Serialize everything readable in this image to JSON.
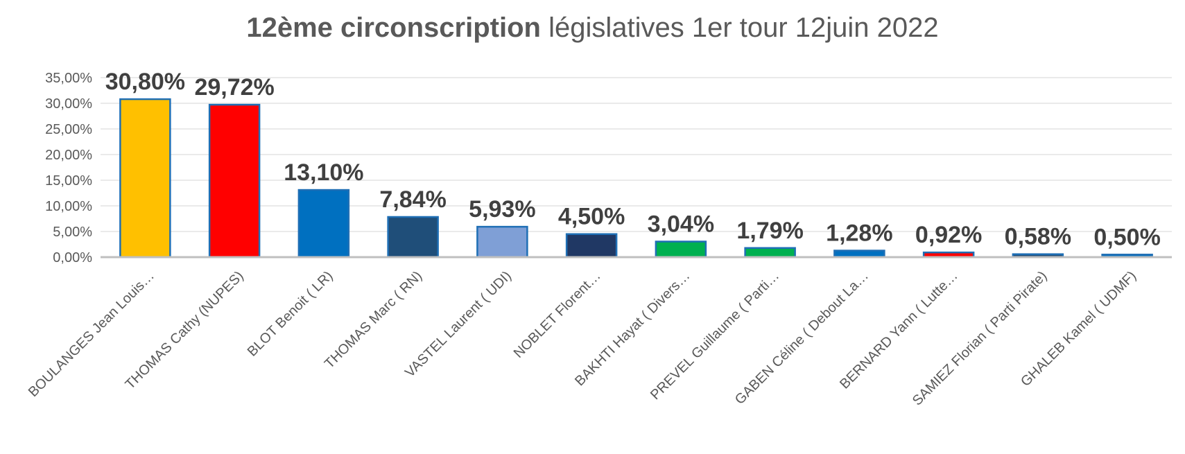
{
  "chart_data": {
    "type": "bar",
    "title_bold": "12ème circonscription",
    "title_rest": " législatives 1er tour  12juin 2022",
    "categories": [
      "BOULANGES Jean Louis…",
      "THOMAS Cathy (NUPES)",
      "BLOT Benoit ( LR)",
      "THOMAS Marc ( RN)",
      "VASTEL Laurent ( UDI)",
      "NOBLET Florent…",
      "BAKHTI Hayat ( Divers…",
      "PREVEL Guillaume ( Parti…",
      "GABEN Céline ( Debout La…",
      "BERNARD Yann ( Lutte…",
      "SAMIEZ Florian ( Parti Pirate)",
      "GHALEB Kamel ( UDMF)"
    ],
    "values": [
      30.8,
      29.72,
      13.1,
      7.84,
      5.93,
      4.5,
      3.04,
      1.79,
      1.28,
      0.92,
      0.58,
      0.5
    ],
    "value_labels": [
      "30,80%",
      "29,72%",
      "13,10%",
      "7,84%",
      "5,93%",
      "4,50%",
      "3,04%",
      "1,79%",
      "1,28%",
      "0,92%",
      "0,58%",
      "0,50%"
    ],
    "colors": [
      "#FFC000",
      "#FF0000",
      "#0070C0",
      "#1F4E79",
      "#7F9FD6",
      "#203864",
      "#00B050",
      "#00B050",
      "#0070C0",
      "#FF0000",
      "#1F4E79",
      "#0070C0"
    ],
    "border_color": "#1F6FB5",
    "ylim": [
      0,
      35
    ],
    "yticks": [
      0,
      5,
      10,
      15,
      20,
      25,
      30,
      35
    ],
    "ytick_labels": [
      "0,00%",
      "5,00%",
      "10,00%",
      "15,00%",
      "20,00%",
      "25,00%",
      "30,00%",
      "35,00%"
    ],
    "grid": true,
    "legend": "none"
  }
}
